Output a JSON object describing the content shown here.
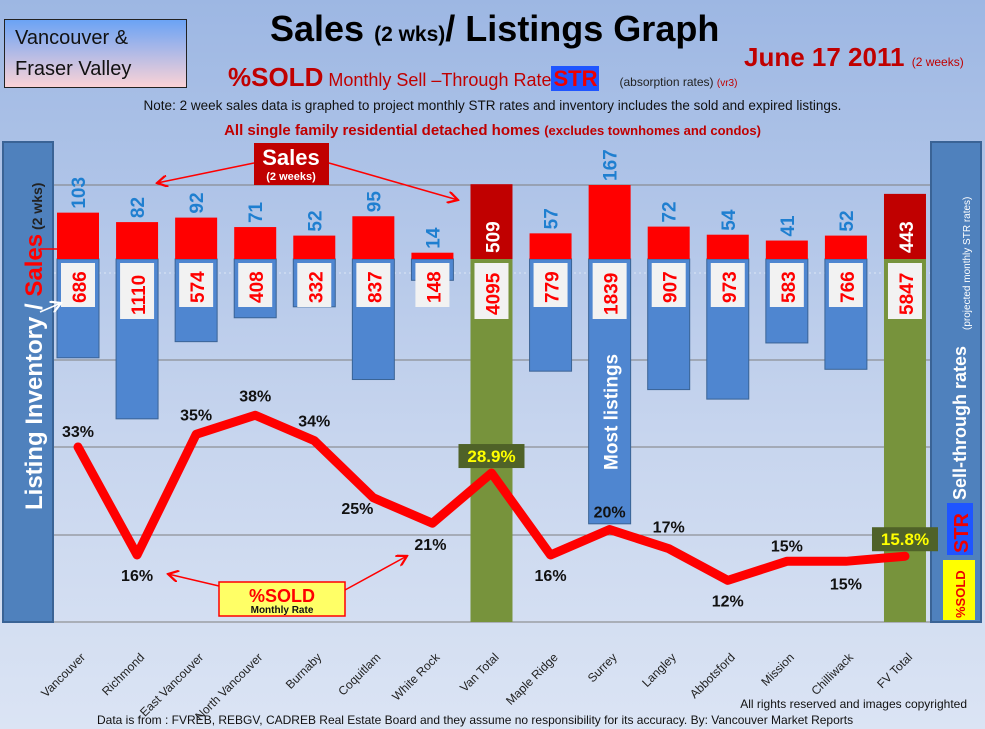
{
  "region_label": [
    "Vancouver &",
    "Fraser Valley"
  ],
  "title": {
    "main_a": "Sales",
    "main_small": "(2 wks)",
    "main_b": "/ Listings Graph"
  },
  "date": {
    "value": "June 17 2011",
    "note": "(2 weeks)"
  },
  "subtitle": {
    "sold": "%SOLD",
    "rate": "Monthly Sell –Through Rate",
    "str": "STR",
    "absorption": "(absorption rates)",
    "version": "(vr3)"
  },
  "note": "Note: 2 week sales data is graphed to project monthly STR rates and inventory includes the sold and expired listings.",
  "scope": {
    "main": "All single family residential detached homes",
    "paren": "(excludes townhomes and condos)"
  },
  "footer": {
    "rights": "All rights reserved and  images copyrighted",
    "source": "Data is from : FVREB, REBGV, CADREB Real Estate Board and they assume no responsibility for its accuracy. By: Vancouver Market Reports"
  },
  "chart_data": {
    "type": "bar",
    "title": "Sales (2 wks)/ Listings Graph",
    "ylabel_left": {
      "a": "Listing Inventory / ",
      "b": "Sales",
      "c": " (2  wks)"
    },
    "ylabel_right": {
      "a": "Sell-through rates",
      "b": "(projected monthly STR rates)",
      "str": "STR",
      "sold": "%SOLD"
    },
    "categories": [
      "Vancouver",
      "Richmond",
      "East Vancouver",
      "North Vancouver",
      "Burnaby",
      "Coquitlam",
      "White Rock",
      "Van Total",
      "Maple Ridge",
      "Surrey",
      "Langley",
      "Abbotsford",
      "Mission",
      "Chilliwack",
      "FV Total"
    ],
    "series": [
      {
        "name": "Sales (2 weeks)",
        "values": [
          103,
          82,
          92,
          71,
          52,
          95,
          14,
          509,
          57,
          167,
          72,
          54,
          41,
          52,
          443
        ]
      },
      {
        "name": "Listing Inventory",
        "values": [
          686,
          1110,
          574,
          408,
          332,
          837,
          148,
          4095,
          779,
          1839,
          907,
          973,
          583,
          766,
          5847
        ]
      },
      {
        "name": "%SOLD Monthly Rate",
        "values": [
          33,
          16,
          35,
          38,
          34,
          25,
          21,
          28.9,
          16,
          20,
          17,
          12,
          15,
          15,
          15.8
        ],
        "labels": [
          "33%",
          "16%",
          "35%",
          "38%",
          "34%",
          "25%",
          "21%",
          "28.9%",
          "16%",
          "20%",
          "17%",
          "12%",
          "15%",
          "15%",
          "15.8%"
        ]
      }
    ],
    "totals": [
      "Van Total",
      "FV Total"
    ],
    "annotations": {
      "sales_box": "Sales",
      "sales_box_sub": "(2 weeks)",
      "sold_box": "%SOLD",
      "sold_box_sub": "Monthly Rate",
      "surrey_note": "Most listings"
    },
    "colors": {
      "sales": "#ff0000",
      "sales_total": "#c00000",
      "listings": "#4f86d0",
      "total": "#77933c",
      "line": "#ff0000",
      "sales_label": "#1f7fd0"
    }
  }
}
